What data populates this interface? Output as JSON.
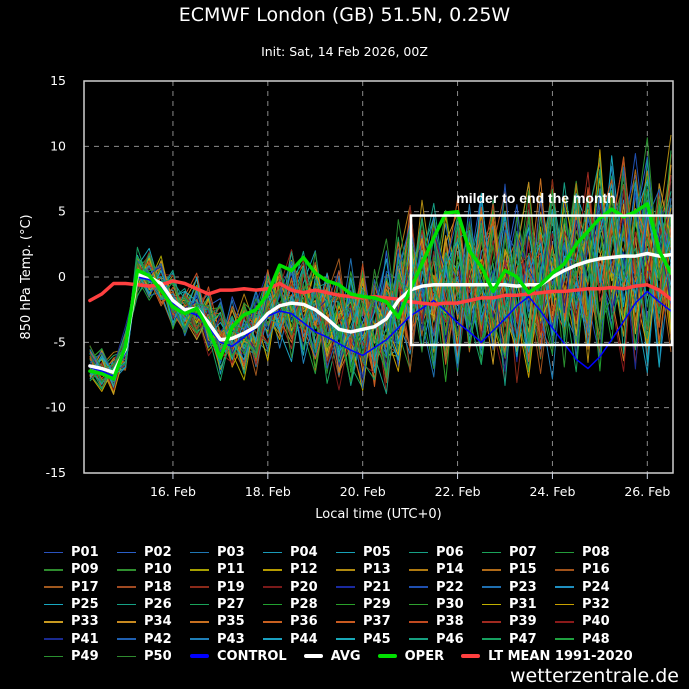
{
  "header": {
    "title": "ECMWF London (GB) 51.5N, 0.25W",
    "subtitle": "Init: Sat, 14 Feb 2026, 00Z"
  },
  "credit": "wetterzentrale.de",
  "chart_data": {
    "type": "line",
    "title": "ECMWF London (GB) 51.5N, 0.25W",
    "subtitle": "Init: Sat, 14 Feb 2026, 00Z",
    "xlabel": "Local time (UTC+0)",
    "ylabel": "850 hPa Temp. (°C)",
    "x_unit": "hours since 14 Feb 2026 00Z",
    "xlim_hours": [
      3,
      301
    ],
    "ylim": [
      -15,
      15
    ],
    "yticks": [
      15,
      10,
      5,
      0,
      -5,
      -10,
      -15
    ],
    "xticks": [
      {
        "hour": 48,
        "label": "16. Feb"
      },
      {
        "hour": 96,
        "label": "18. Feb"
      },
      {
        "hour": 144,
        "label": "20. Feb"
      },
      {
        "hour": 192,
        "label": "22. Feb"
      },
      {
        "hour": 240,
        "label": "24. Feb"
      },
      {
        "hour": 288,
        "label": "26. Feb"
      }
    ],
    "grid": true,
    "legend_placement": "bottom",
    "annotation": {
      "text": "milder to end the month",
      "box_hours": [
        180,
        301
      ],
      "box_values": [
        -5.2,
        4.7
      ]
    },
    "x_hours": [
      6,
      12,
      18,
      24,
      30,
      36,
      42,
      48,
      54,
      60,
      66,
      72,
      78,
      84,
      90,
      96,
      102,
      108,
      114,
      120,
      126,
      132,
      138,
      144,
      150,
      156,
      162,
      168,
      174,
      180,
      186,
      192,
      198,
      204,
      210,
      216,
      222,
      228,
      234,
      240,
      246,
      252,
      258,
      264,
      270,
      276,
      282,
      288,
      294,
      300
    ],
    "highlight_series": [
      {
        "name": "LT MEAN 1991-2020",
        "color": "#ff4040",
        "values": [
          -1.8,
          -1.3,
          -0.5,
          -0.5,
          -0.6,
          -0.7,
          -0.6,
          -0.3,
          -0.5,
          -0.9,
          -1.3,
          -1.0,
          -1.0,
          -0.9,
          -1.0,
          -0.9,
          -0.5,
          -1.0,
          -1.2,
          -1.0,
          -1.2,
          -1.4,
          -1.5,
          -1.6,
          -1.5,
          -1.6,
          -1.7,
          -1.9,
          -2.0,
          -2.1,
          -2.0,
          -2.0,
          -1.8,
          -1.6,
          -1.6,
          -1.4,
          -1.4,
          -1.3,
          -1.2,
          -1.1,
          -1.1,
          -1.0,
          -0.9,
          -0.9,
          -0.8,
          -0.9,
          -0.7,
          -0.6,
          -1.0,
          -1.7
        ]
      },
      {
        "name": "AVG",
        "color": "#ffffff",
        "values": [
          -6.8,
          -7.0,
          -7.3,
          -5.5,
          0.2,
          0.0,
          -0.5,
          -1.8,
          -2.5,
          -2.4,
          -3.5,
          -4.8,
          -4.7,
          -4.3,
          -3.8,
          -2.8,
          -2.2,
          -2.0,
          -2.1,
          -2.5,
          -3.2,
          -4.0,
          -4.2,
          -4.0,
          -3.8,
          -3.2,
          -1.8,
          -1.0,
          -0.7,
          -0.6,
          -0.6,
          -0.6,
          -0.6,
          -0.6,
          -0.6,
          -0.6,
          -0.7,
          -0.6,
          -0.6,
          0.0,
          0.5,
          0.9,
          1.2,
          1.4,
          1.5,
          1.6,
          1.6,
          1.8,
          1.6,
          1.7
        ]
      },
      {
        "name": "OPER",
        "color": "#00e000",
        "values": [
          -7.2,
          -7.4,
          -7.8,
          -5.3,
          0.5,
          0.1,
          -1.0,
          -2.3,
          -2.8,
          -2.4,
          -4.0,
          -6.2,
          -3.8,
          -2.9,
          -2.5,
          -1.3,
          0.9,
          0.5,
          1.5,
          0.3,
          -0.3,
          -0.6,
          -1.3,
          -1.5,
          -1.6,
          -1.9,
          -3.1,
          -1.0,
          1.0,
          3.0,
          4.9,
          5.0,
          2.0,
          0.8,
          -1.1,
          0.5,
          0.0,
          -1.2,
          -0.6,
          0.3,
          1.0,
          2.5,
          3.5,
          4.5,
          5.2,
          4.6,
          5.0,
          5.6,
          2.0,
          0.3
        ]
      },
      {
        "name": "CONTROL",
        "color": "#0000ff",
        "values": [
          -6.9,
          -7.2,
          -7.6,
          -5.8,
          0.0,
          -0.2,
          -0.8,
          -2.0,
          -2.6,
          -2.9,
          -3.8,
          -5.0,
          -5.3,
          -4.6,
          -3.9,
          -3.0,
          -2.6,
          -2.8,
          -3.5,
          -4.2,
          -4.6,
          -5.1,
          -5.6,
          -6.0,
          -5.4,
          -4.8,
          -3.9,
          -3.0,
          -2.4,
          -1.8,
          -2.6,
          -3.5,
          -4.2,
          -5.0,
          -4.1,
          -3.2,
          -2.2,
          -1.5,
          -2.6,
          -3.9,
          -5.1,
          -6.3,
          -7.0,
          -6.1,
          -4.8,
          -3.4,
          -2.0,
          -1.1,
          -1.9,
          -2.6
        ]
      }
    ],
    "members": {
      "names": [
        "P01",
        "P02",
        "P03",
        "P04",
        "P05",
        "P06",
        "P07",
        "P08",
        "P09",
        "P10",
        "P11",
        "P12",
        "P13",
        "P14",
        "P15",
        "P16",
        "P17",
        "P18",
        "P19",
        "P20",
        "P21",
        "P22",
        "P23",
        "P24",
        "P25",
        "P26",
        "P27",
        "P28",
        "P29",
        "P30",
        "P31",
        "P32",
        "P33",
        "P34",
        "P35",
        "P36",
        "P37",
        "P38",
        "P39",
        "P40",
        "P41",
        "P42",
        "P43",
        "P44",
        "P45",
        "P46",
        "P47",
        "P48",
        "P49",
        "P50"
      ],
      "colors": [
        "#2a52be",
        "#2a5fc8",
        "#1f77b4",
        "#1a9ab8",
        "#17a2b8",
        "#16a085",
        "#1aa35a",
        "#239b3a",
        "#2e8b2e",
        "#2f8f2f",
        "#a6a000",
        "#b59b00",
        "#b08a10",
        "#b07a10",
        "#b06a18",
        "#a0521a",
        "#a0581e",
        "#a04a22",
        "#8b2a1a",
        "#7a1a1a",
        "#1a2aa0",
        "#1f4fb0",
        "#1f6fb0",
        "#1f8fc0",
        "#18a8c0",
        "#16a085",
        "#1aa35a",
        "#22a030",
        "#2aa02a",
        "#2fa02f",
        "#c0b000",
        "#c8a000",
        "#c89a20",
        "#c88a20",
        "#c87020",
        "#c86020",
        "#c85a20",
        "#c04a20",
        "#a02a20",
        "#8a1a1a",
        "#1a2a90",
        "#1f5fb0",
        "#1f7fb8",
        "#1aa0c0",
        "#18a8b8",
        "#16a080",
        "#16a060",
        "#1fa040",
        "#2a9030",
        "#2f8a2f"
      ],
      "spread_sd": [
        0.8,
        0.8,
        0.8,
        0.8,
        1.0,
        1.0,
        1.0,
        1.1,
        1.1,
        1.2,
        1.3,
        1.4,
        1.5,
        1.6,
        1.7,
        1.8,
        1.9,
        2.0,
        2.1,
        2.2,
        2.3,
        2.4,
        2.5,
        2.6,
        2.7,
        2.8,
        2.9,
        3.0,
        3.1,
        3.2,
        3.3,
        3.4,
        3.4,
        3.5,
        3.5,
        3.6,
        3.6,
        3.7,
        3.7,
        3.8,
        3.8,
        3.9,
        3.9,
        4.0,
        4.0,
        4.0,
        4.1,
        4.1,
        4.1,
        4.2
      ],
      "offsets": [
        [
          0.9,
          -0.8,
          0.4,
          -1.2,
          0.7,
          1.5,
          -0.6,
          0.2,
          -1.4,
          1.1,
          0.3,
          -0.9,
          1.8,
          -0.2,
          0.6,
          -1.7,
          1.0,
          0.1,
          -0.5,
          1.3,
          -1.1,
          0.8,
          -0.3,
          1.6,
          -0.7,
          0.4,
          -1.9,
          0.9,
          0.2,
          -1.2,
          1.4,
          -0.4,
          0.5,
          1.9,
          -0.8,
          -0.1,
          1.1,
          -1.5,
          0.3,
          0.7,
          -1.0,
          1.7,
          -0.6,
          0.1,
          -1.3,
          0.6,
          1.2,
          -0.9,
          0.4,
          0.0
        ],
        [
          -0.5,
          1.2,
          -1.0,
          0.3,
          1.6,
          -0.4,
          0.9,
          -1.3,
          0.2,
          0.8,
          -1.8,
          1.1,
          -0.6,
          0.5,
          1.4,
          -0.2,
          -1.1,
          0.7,
          1.9,
          -0.8,
          0.3,
          -1.4,
          1.0,
          0.4,
          -0.9,
          1.5,
          -0.3,
          0.6,
          -1.6,
          1.2,
          0.0,
          -0.7,
          1.8,
          -1.0,
          0.4,
          0.9,
          -1.2,
          0.2,
          1.3,
          -0.5,
          -1.7,
          0.8,
          0.1,
          1.6,
          -0.4,
          -1.1,
          0.7,
          1.0,
          -0.6,
          0.3
        ]
      ],
      "note": "offsets rows repeat cyclically across members; member value = AVG + spread_sd × offset"
    },
    "legend": [
      "P01",
      "P02",
      "P03",
      "P04",
      "P05",
      "P06",
      "P07",
      "P08",
      "P09",
      "P10",
      "P11",
      "P12",
      "P13",
      "P14",
      "P15",
      "P16",
      "P17",
      "P18",
      "P19",
      "P20",
      "P21",
      "P22",
      "P23",
      "P24",
      "P25",
      "P26",
      "P27",
      "P28",
      "P29",
      "P30",
      "P31",
      "P32",
      "P33",
      "P34",
      "P35",
      "P36",
      "P37",
      "P38",
      "P39",
      "P40",
      "P41",
      "P42",
      "P43",
      "P44",
      "P45",
      "P46",
      "P47",
      "P48",
      "P49",
      "P50",
      "CONTROL",
      "AVG",
      "OPER",
      "LT MEAN 1991-2020"
    ]
  }
}
